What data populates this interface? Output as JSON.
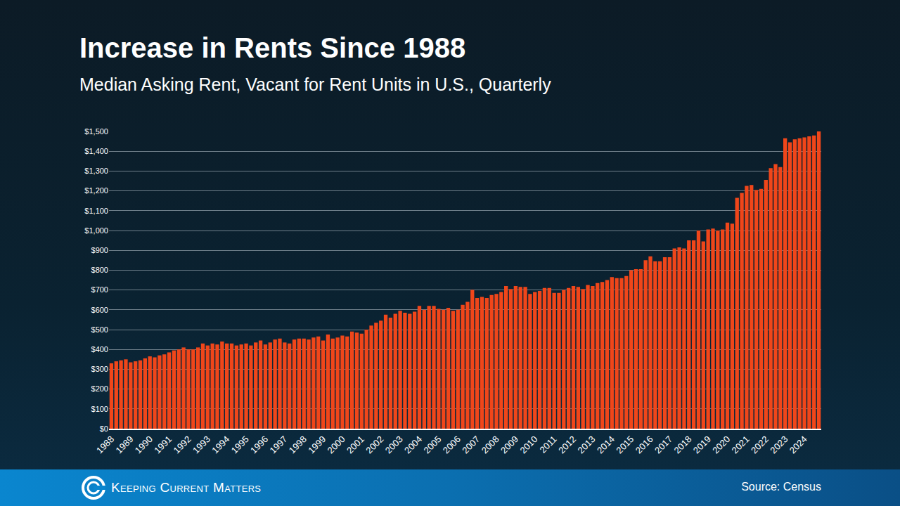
{
  "chart_data": {
    "type": "bar",
    "title": "Increase in Rents Since 1988",
    "subtitle": "Median Asking Rent, Vacant for Rent Units in U.S., Quarterly",
    "source": "Source: Census",
    "logo": "Keeping Current Matters",
    "color": "#f0461a",
    "grid": true,
    "categories": [
      "1988",
      null,
      null,
      null,
      "1989",
      null,
      null,
      null,
      "1990",
      null,
      null,
      null,
      "1991",
      null,
      null,
      null,
      "1992",
      null,
      null,
      null,
      "1993",
      null,
      null,
      null,
      "1994",
      null,
      null,
      null,
      "1995",
      null,
      null,
      null,
      "1996",
      null,
      null,
      null,
      "1997",
      null,
      null,
      null,
      "1998",
      null,
      null,
      null,
      "1999",
      null,
      null,
      null,
      "2000",
      null,
      null,
      null,
      "2001",
      null,
      null,
      null,
      "2002",
      null,
      null,
      null,
      "2003",
      null,
      null,
      null,
      "2004",
      null,
      null,
      null,
      "2005",
      null,
      null,
      null,
      "2006",
      null,
      null,
      null,
      "2007",
      null,
      null,
      null,
      "2008",
      null,
      null,
      null,
      "2009",
      null,
      null,
      null,
      "2010",
      null,
      null,
      null,
      "2011",
      null,
      null,
      null,
      "2012",
      null,
      null,
      null,
      "2013",
      null,
      null,
      null,
      "2014",
      null,
      null,
      null,
      "2015",
      null,
      null,
      null,
      "2016",
      null,
      null,
      null,
      "2017",
      null,
      null,
      null,
      "2018",
      null,
      null,
      null,
      "2019",
      null,
      null,
      null,
      "2020",
      null,
      null,
      null,
      "2021",
      null,
      null,
      null,
      "2022",
      null,
      null,
      null,
      "2023",
      null,
      null,
      null,
      "2024",
      null,
      null,
      null
    ],
    "values": [
      330,
      340,
      345,
      350,
      335,
      340,
      345,
      355,
      365,
      360,
      370,
      375,
      385,
      395,
      400,
      410,
      400,
      400,
      410,
      430,
      420,
      430,
      425,
      440,
      430,
      430,
      420,
      425,
      430,
      420,
      435,
      445,
      425,
      435,
      450,
      455,
      435,
      430,
      450,
      455,
      455,
      450,
      460,
      465,
      445,
      475,
      455,
      460,
      470,
      465,
      490,
      485,
      480,
      500,
      520,
      535,
      545,
      575,
      560,
      580,
      595,
      585,
      580,
      590,
      620,
      600,
      620,
      620,
      605,
      600,
      610,
      595,
      600,
      625,
      640,
      700,
      660,
      665,
      660,
      675,
      680,
      690,
      720,
      705,
      720,
      715,
      715,
      680,
      690,
      695,
      710,
      710,
      685,
      685,
      700,
      710,
      720,
      715,
      705,
      725,
      720,
      735,
      740,
      750,
      765,
      760,
      760,
      770,
      800,
      805,
      805,
      850,
      870,
      845,
      845,
      865,
      865,
      910,
      915,
      910,
      950,
      950,
      1000,
      945,
      1005,
      1010,
      1000,
      1005,
      1040,
      1035,
      1165,
      1190,
      1225,
      1230,
      1205,
      1210,
      1255,
      1315,
      1335,
      1320,
      1465,
      1445,
      1460,
      1465,
      1470,
      1475,
      1480,
      1500
    ],
    "ylim": [
      0,
      1500
    ],
    "yticks": [
      {
        "value": 0,
        "label": "$0"
      },
      {
        "value": 100,
        "label": "$100"
      },
      {
        "value": 200,
        "label": "$200"
      },
      {
        "value": 300,
        "label": "$300"
      },
      {
        "value": 400,
        "label": "$400"
      },
      {
        "value": 500,
        "label": "$500"
      },
      {
        "value": 600,
        "label": "$600"
      },
      {
        "value": 700,
        "label": "$700"
      },
      {
        "value": 800,
        "label": "$800"
      },
      {
        "value": 900,
        "label": "$900"
      },
      {
        "value": 1000,
        "label": "$1,000"
      },
      {
        "value": 1100,
        "label": "$1,100"
      },
      {
        "value": 1200,
        "label": "$1,200"
      },
      {
        "value": 1300,
        "label": "$1,300"
      },
      {
        "value": 1400,
        "label": "$1,400"
      },
      {
        "value": 1500,
        "label": "$1,500"
      }
    ]
  }
}
